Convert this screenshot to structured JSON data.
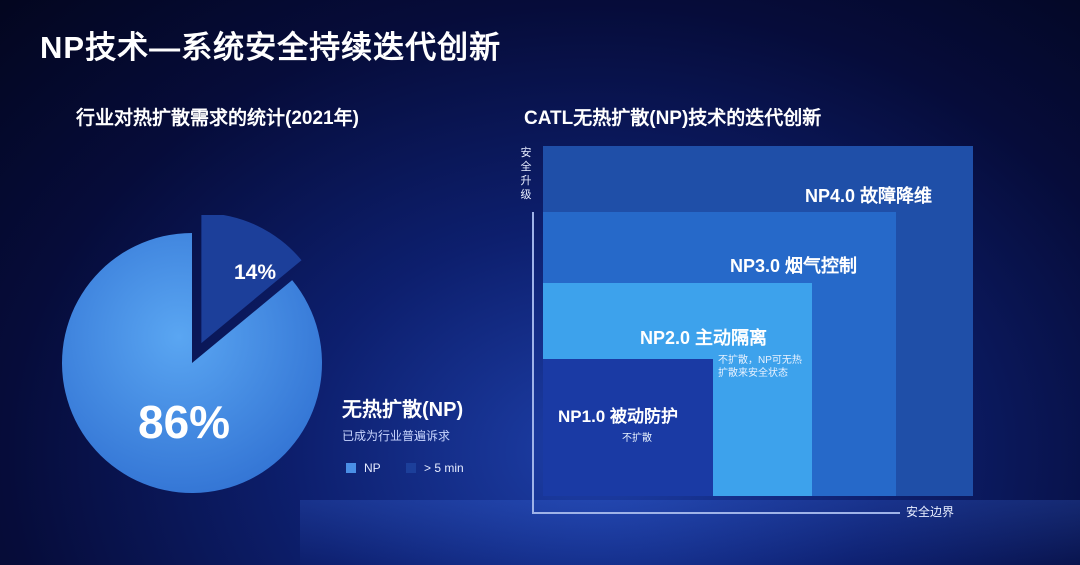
{
  "title": "NP技术—系统安全持续迭代创新",
  "left_panel": {
    "subtitle": "行业对热扩散需求的统计(2021年)",
    "np_heading": "无热扩散(NP)",
    "np_sub": "已成为行业普遍诉求",
    "legend": [
      {
        "label": "NP",
        "color": "#4a8fe6"
      },
      {
        "label": "> 5 min",
        "color": "#1c3f9a"
      }
    ]
  },
  "chart_data": {
    "type": "pie",
    "title": "行业对热扩散需求的统计(2021年)",
    "slices": [
      {
        "name": "NP",
        "value": 86,
        "label": "86%",
        "color": "#4a8fe6",
        "exploded": false
      },
      {
        "name": "> 5 min",
        "value": 14,
        "label": "14%",
        "color": "#1c3f9a",
        "exploded": true
      }
    ],
    "legend_position": "bottom-right"
  },
  "right_panel": {
    "subtitle": "CATL无热扩散(NP)技术的迭代创新",
    "axis_y_label": "安全升级",
    "axis_x_label": "安全边界",
    "levels": [
      {
        "label": "NP4.0  故障降维",
        "color": "#1f4fa8"
      },
      {
        "label": "NP3.0  烟气控制",
        "color": "#2669c9"
      },
      {
        "label": "NP2.0  主动隔离",
        "color": "#3da2ec",
        "note": "不扩散，NP可无热扩散来安全状态"
      },
      {
        "label": "NP1.0  被动防护",
        "color": "#1a3aa4",
        "note": "不扩散"
      }
    ]
  }
}
